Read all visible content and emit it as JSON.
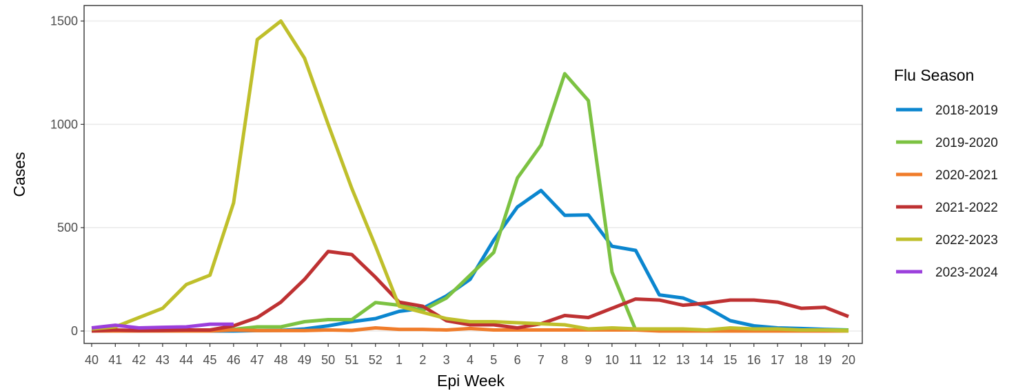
{
  "chart_data": {
    "type": "line",
    "xlabel": "Epi Week",
    "ylabel": "Cases",
    "categories": [
      "40",
      "41",
      "42",
      "43",
      "44",
      "45",
      "46",
      "47",
      "48",
      "49",
      "50",
      "51",
      "52",
      "1",
      "2",
      "3",
      "4",
      "5",
      "6",
      "7",
      "8",
      "9",
      "10",
      "11",
      "12",
      "13",
      "14",
      "15",
      "16",
      "17",
      "18",
      "19",
      "20"
    ],
    "ylim": [
      -60,
      1575
    ],
    "yticks": [
      0,
      500,
      1000,
      1500
    ],
    "grid": true,
    "legend": {
      "title": "Flu Season",
      "position": "right"
    },
    "series": [
      {
        "name": "2018-2019",
        "color": "#0b86cf",
        "values": [
          0,
          0,
          0,
          0,
          0,
          0,
          0,
          2,
          3,
          10,
          25,
          45,
          60,
          95,
          110,
          170,
          250,
          440,
          600,
          680,
          560,
          562,
          410,
          390,
          175,
          160,
          115,
          50,
          25,
          15,
          12,
          8,
          5
        ]
      },
      {
        "name": "2019-2020",
        "color": "#7cc242",
        "values": [
          0,
          0,
          0,
          0,
          0,
          2,
          8,
          20,
          20,
          45,
          55,
          55,
          138,
          125,
          100,
          160,
          270,
          380,
          740,
          900,
          1245,
          1115,
          285,
          5,
          5,
          5,
          5,
          5,
          5,
          5,
          5,
          5,
          5
        ]
      },
      {
        "name": "2020-2021",
        "color": "#f07c2a",
        "values": [
          0,
          0,
          0,
          0,
          0,
          0,
          5,
          2,
          2,
          2,
          5,
          3,
          15,
          8,
          8,
          5,
          12,
          5,
          5,
          5,
          5,
          5,
          5,
          5,
          0,
          0,
          0,
          0,
          0,
          0,
          0,
          0,
          0
        ]
      },
      {
        "name": "2021-2022",
        "color": "#be3132",
        "values": [
          0,
          5,
          2,
          3,
          5,
          5,
          25,
          65,
          140,
          250,
          385,
          370,
          260,
          140,
          120,
          50,
          30,
          30,
          15,
          35,
          75,
          65,
          110,
          155,
          150,
          125,
          135,
          150,
          150,
          140,
          110,
          115,
          70
        ]
      },
      {
        "name": "2022-2023",
        "color": "#bfbf2b",
        "values": [
          10,
          20,
          65,
          110,
          225,
          270,
          620,
          1410,
          1500,
          1320,
          1000,
          690,
          410,
          120,
          90,
          60,
          45,
          45,
          40,
          35,
          30,
          10,
          15,
          10,
          10,
          10,
          5,
          15,
          10,
          10,
          5,
          5,
          0
        ]
      },
      {
        "name": "2023-2024",
        "color": "#9b3fdc",
        "values": [
          15,
          28,
          15,
          18,
          20,
          33,
          33,
          null,
          null,
          null,
          null,
          null,
          null,
          null,
          null,
          null,
          null,
          null,
          null,
          null,
          null,
          null,
          null,
          null,
          null,
          null,
          null,
          null,
          null,
          null,
          null,
          null,
          null
        ]
      }
    ]
  }
}
